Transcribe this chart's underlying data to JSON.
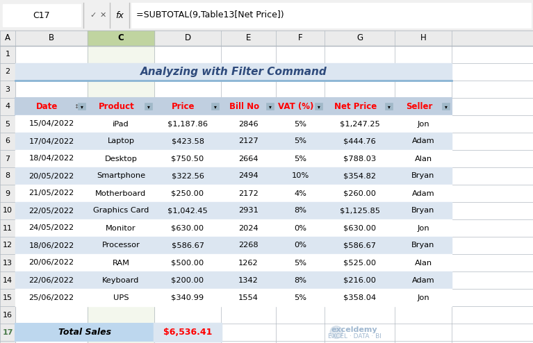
{
  "formula_bar_cell": "C17",
  "formula_bar_formula": "=SUBTOTAL(9,Table13[Net Price])",
  "title": "Analyzing with Filter Command",
  "title_bg": "#dce6f1",
  "title_color": "#2f4b7c",
  "col_letters": [
    "A",
    "B",
    "C",
    "D",
    "E",
    "F",
    "G",
    "H"
  ],
  "row_numbers": [
    "1",
    "2",
    "3",
    "4",
    "5",
    "6",
    "7",
    "8",
    "9",
    "10",
    "11",
    "12",
    "13",
    "14",
    "15",
    "16",
    "17"
  ],
  "headers": [
    "Date",
    "Product",
    "Price",
    "Bill No",
    "VAT (%)",
    "Net Price",
    "Seller"
  ],
  "header_color": "#ff0000",
  "header_bg": "#c0cfe0",
  "data": [
    [
      "15/04/2022",
      "iPad",
      "$1,187.86",
      "2846",
      "5%",
      "$1,247.25",
      "Jon"
    ],
    [
      "17/04/2022",
      "Laptop",
      "$423.58",
      "2127",
      "5%",
      "$444.76",
      "Adam"
    ],
    [
      "18/04/2022",
      "Desktop",
      "$750.50",
      "2664",
      "5%",
      "$788.03",
      "Alan"
    ],
    [
      "20/05/2022",
      "Smartphone",
      "$322.56",
      "2494",
      "10%",
      "$354.82",
      "Bryan"
    ],
    [
      "21/05/2022",
      "Motherboard",
      "$250.00",
      "2172",
      "4%",
      "$260.00",
      "Adam"
    ],
    [
      "22/05/2022",
      "Graphics Card",
      "$1,042.45",
      "2931",
      "8%",
      "$1,125.85",
      "Bryan"
    ],
    [
      "24/05/2022",
      "Monitor",
      "$630.00",
      "2024",
      "0%",
      "$630.00",
      "Jon"
    ],
    [
      "18/06/2022",
      "Processor",
      "$586.67",
      "2268",
      "0%",
      "$586.67",
      "Bryan"
    ],
    [
      "20/06/2022",
      "RAM",
      "$500.00",
      "1262",
      "5%",
      "$525.00",
      "Alan"
    ],
    [
      "22/06/2022",
      "Keyboard",
      "$200.00",
      "1342",
      "8%",
      "$216.00",
      "Adam"
    ],
    [
      "25/06/2022",
      "UPS",
      "$340.99",
      "1554",
      "5%",
      "$358.04",
      "Jon"
    ]
  ],
  "row_bg_odd": "#ffffff",
  "row_bg_even": "#dce6f1",
  "total_sales_label": "Total Sales",
  "total_sales_value": "$6,536.41",
  "total_sales_label_bg": "#bdd7ee",
  "total_sales_value_color": "#ff0000",
  "grid_color": "#b0b8c0",
  "table_border_color": "#70879a",
  "col_header_bg": "#ebebeb",
  "row_header_bg": "#ebebeb",
  "selected_col_bg": "#c0d4a0",
  "selected_col_header_bg": "#9ab87a",
  "formula_bar_bg": "#f5f5f5",
  "formula_box_border": "#ff0000",
  "namebox_border": "#c0c0c0",
  "exceldemy_color": "#a0b8d0",
  "watermark_text1": "exceldemy",
  "watermark_text2": "EXCEL · DATA · BI"
}
